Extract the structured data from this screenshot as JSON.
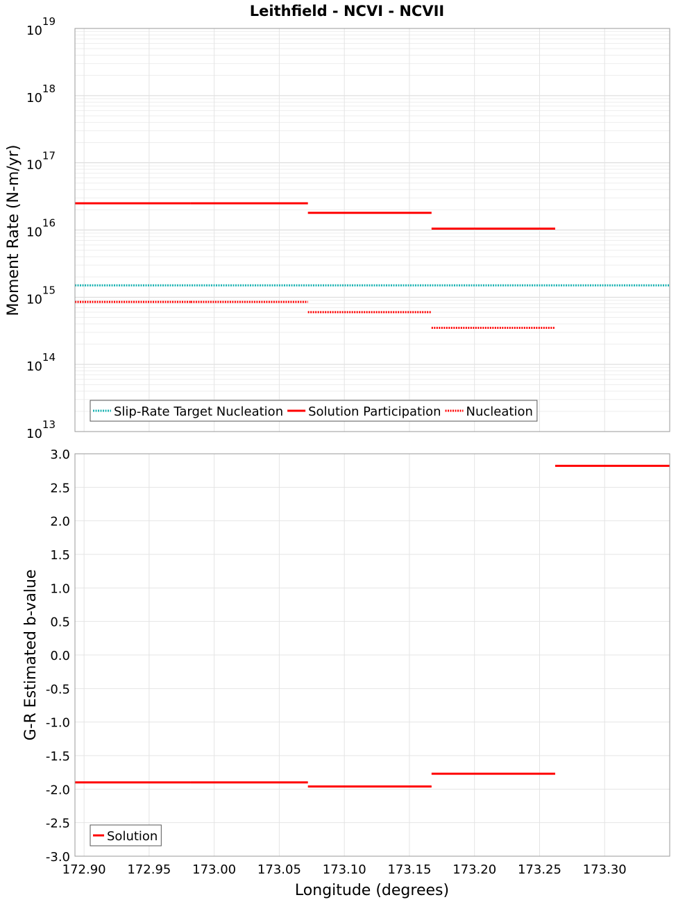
{
  "chart_data": [
    {
      "type": "line",
      "title": "Leithfield - NCVI - NCVII",
      "xlabel": "",
      "ylabel": "Moment Rate (N-m/yr)",
      "yscale": "log",
      "ylim": [
        10000000000000.0,
        1e+19
      ],
      "xlim": [
        172.893,
        173.35
      ],
      "y_ticks": [
        {
          "base": "10",
          "exp": "13",
          "value": 13
        },
        {
          "base": "10",
          "exp": "14",
          "value": 14
        },
        {
          "base": "10",
          "exp": "15",
          "value": 15
        },
        {
          "base": "10",
          "exp": "16",
          "value": 16
        },
        {
          "base": "10",
          "exp": "17",
          "value": 17
        },
        {
          "base": "10",
          "exp": "18",
          "value": 18
        },
        {
          "base": "10",
          "exp": "19",
          "value": 19
        }
      ],
      "grid": true,
      "legend_position": "bottom-left",
      "series": [
        {
          "name": "Slip-Rate Target Nucleation",
          "color": "#1ab2b2",
          "style": "dotted",
          "segments": [
            {
              "x0": 172.893,
              "x1": 173.35,
              "y": 1500000000000000.0
            }
          ]
        },
        {
          "name": "Solution Participation",
          "color": "#ff0000",
          "style": "solid",
          "segments": [
            {
              "x0": 172.893,
              "x1": 172.982,
              "y": 2.5e+16
            },
            {
              "x0": 172.982,
              "x1": 173.072,
              "y": 2.5e+16
            },
            {
              "x0": 173.072,
              "x1": 173.167,
              "y": 1.8e+16
            },
            {
              "x0": 173.167,
              "x1": 173.262,
              "y": 1.05e+16
            }
          ]
        },
        {
          "name": "Nucleation",
          "color": "#ff0000",
          "style": "dotted",
          "segments": [
            {
              "x0": 172.893,
              "x1": 172.982,
              "y": 850000000000000.0
            },
            {
              "x0": 172.982,
              "x1": 173.072,
              "y": 850000000000000.0
            },
            {
              "x0": 173.072,
              "x1": 173.167,
              "y": 600000000000000.0
            },
            {
              "x0": 173.167,
              "x1": 173.262,
              "y": 350000000000000.0
            }
          ]
        }
      ]
    },
    {
      "type": "line",
      "title": "",
      "xlabel": "Longitude (degrees)",
      "ylabel": "G-R Estimated b-value",
      "ylim": [
        -3.0,
        3.0
      ],
      "xlim": [
        172.893,
        173.35
      ],
      "y_ticks": [
        "-3.0",
        "-2.5",
        "-2.0",
        "-1.5",
        "-1.0",
        "-0.5",
        "0.0",
        "0.5",
        "1.0",
        "1.5",
        "2.0",
        "2.5",
        "3.0"
      ],
      "x_ticks": [
        "172.90",
        "172.95",
        "173.00",
        "173.05",
        "173.10",
        "173.15",
        "173.20",
        "173.25",
        "173.30"
      ],
      "grid": true,
      "legend_position": "bottom-left",
      "series": [
        {
          "name": "Solution",
          "color": "#ff0000",
          "style": "solid",
          "segments": [
            {
              "x0": 172.893,
              "x1": 172.982,
              "y": -1.9
            },
            {
              "x0": 172.982,
              "x1": 173.072,
              "y": -1.9
            },
            {
              "x0": 173.072,
              "x1": 173.167,
              "y": -1.96
            },
            {
              "x0": 173.167,
              "x1": 173.262,
              "y": -1.77
            },
            {
              "x0": 173.262,
              "x1": 173.35,
              "y": 2.82
            }
          ]
        }
      ]
    }
  ]
}
